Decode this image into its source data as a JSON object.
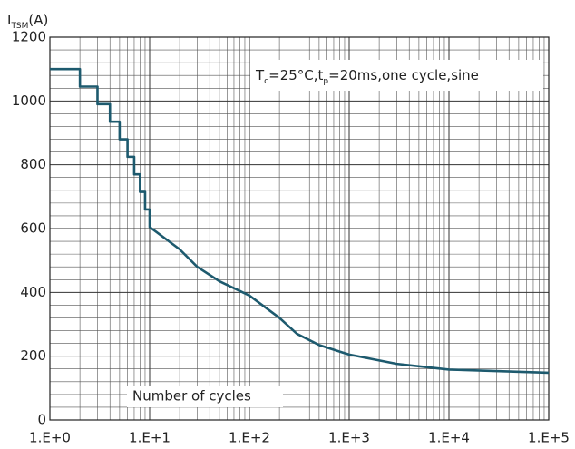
{
  "chart_data": {
    "type": "line",
    "ylabel": {
      "main": "I",
      "sub": "TSM",
      "unit": "(A)"
    },
    "xlabel": "Number of cycles",
    "annotation": [
      {
        "text": "T"
      },
      {
        "text": "c",
        "sub": true
      },
      {
        "text": "=25°C,t"
      },
      {
        "text": "p",
        "sub": true
      },
      {
        "text": "=20ms,one cycle,sine"
      }
    ],
    "log_x": true,
    "log_minor_grid": true,
    "grid": true,
    "xlim": [
      1,
      100000
    ],
    "xticks": [
      {
        "value": 1,
        "label": "1.E+0"
      },
      {
        "value": 10,
        "label": "1.E+1"
      },
      {
        "value": 100,
        "label": "1.E+2"
      },
      {
        "value": 1000,
        "label": "1.E+3"
      },
      {
        "value": 10000,
        "label": "1.E+4"
      },
      {
        "value": 100000,
        "label": "1.E+5"
      }
    ],
    "ylim": [
      0,
      1200
    ],
    "yticks": [
      0,
      200,
      400,
      600,
      800,
      1000,
      1200
    ],
    "yminorticks": [
      40,
      80,
      120,
      160,
      240,
      280,
      320,
      360,
      440,
      480,
      520,
      560,
      640,
      680,
      720,
      760,
      840,
      880,
      920,
      960,
      1040,
      1080,
      1120,
      1160
    ],
    "x": [
      1,
      2,
      2,
      3,
      3,
      4,
      4,
      5,
      5,
      6,
      6,
      7,
      7,
      8,
      8,
      9,
      9,
      10,
      10,
      20,
      30,
      50,
      100,
      200,
      300,
      500,
      1000,
      3000,
      10000,
      100000
    ],
    "series": [
      {
        "color": "#1d5a6e",
        "values": [
          1100,
          1100,
          1045,
          1045,
          990,
          990,
          935,
          935,
          880,
          880,
          825,
          825,
          770,
          770,
          715,
          715,
          660,
          660,
          605,
          535,
          480,
          435,
          390,
          320,
          270,
          235,
          205,
          176,
          158,
          148
        ]
      }
    ]
  }
}
